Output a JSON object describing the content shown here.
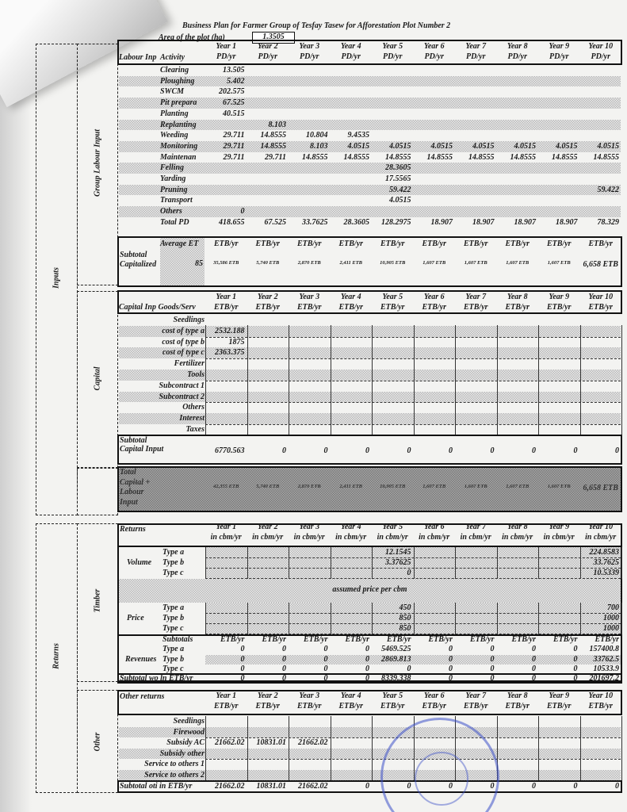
{
  "title": "Business Plan for Farmer Group of Tesfay Tasew for Afforestation Plot Number 2",
  "area": {
    "label": "Area of the plot (ha)",
    "value": "1.3505"
  },
  "years": [
    "Year 1",
    "Year 2",
    "Year 3",
    "Year 4",
    "Year 5",
    "Year 6",
    "Year 7",
    "Year 8",
    "Year 9",
    "Year 10"
  ],
  "side_labels": {
    "inputs": "Inputs",
    "group_labour": "Group Labour Input",
    "capital": "Capital",
    "returns": "Returns",
    "timber": "Timber",
    "other": "Other"
  },
  "labour": {
    "title": "Labour Inp",
    "activity": "Activity",
    "unit": "PD/yr",
    "rows": [
      {
        "label": "Clearing",
        "shaded": false,
        "values": [
          "13.505",
          "",
          "",
          "",
          "",
          "",
          "",
          "",
          "",
          ""
        ]
      },
      {
        "label": "Ploughing",
        "shaded": true,
        "values": [
          "5.402",
          "",
          "",
          "",
          "",
          "",
          "",
          "",
          "",
          ""
        ]
      },
      {
        "label": "SWCM",
        "shaded": false,
        "values": [
          "202.575",
          "",
          "",
          "",
          "",
          "",
          "",
          "",
          "",
          ""
        ]
      },
      {
        "label": "Pit prepara",
        "shaded": true,
        "values": [
          "67.525",
          "",
          "",
          "",
          "",
          "",
          "",
          "",
          "",
          ""
        ]
      },
      {
        "label": "Planting",
        "shaded": false,
        "values": [
          "40.515",
          "",
          "",
          "",
          "",
          "",
          "",
          "",
          "",
          ""
        ]
      },
      {
        "label": "Replanting",
        "shaded": true,
        "values": [
          "",
          "8.103",
          "",
          "",
          "",
          "",
          "",
          "",
          "",
          ""
        ]
      },
      {
        "label": "Weeding",
        "shaded": false,
        "values": [
          "29.711",
          "14.8555",
          "10.804",
          "9.4535",
          "",
          "",
          "",
          "",
          "",
          ""
        ]
      },
      {
        "label": "Monitoring",
        "shaded": true,
        "values": [
          "29.711",
          "14.8555",
          "8.103",
          "4.0515",
          "4.0515",
          "4.0515",
          "4.0515",
          "4.0515",
          "4.0515",
          "4.0515"
        ]
      },
      {
        "label": "Maintenan",
        "shaded": false,
        "values": [
          "29.711",
          "29.711",
          "14.8555",
          "14.8555",
          "14.8555",
          "14.8555",
          "14.8555",
          "14.8555",
          "14.8555",
          "14.8555"
        ]
      },
      {
        "label": "Felling",
        "shaded": true,
        "values": [
          "",
          "",
          "",
          "",
          "28.3605",
          "",
          "",
          "",
          "",
          ""
        ]
      },
      {
        "label": "Yarding",
        "shaded": false,
        "values": [
          "",
          "",
          "",
          "",
          "17.5565",
          "",
          "",
          "",
          "",
          ""
        ]
      },
      {
        "label": "Pruning",
        "shaded": true,
        "values": [
          "",
          "",
          "",
          "",
          "59.422",
          "",
          "",
          "",
          "",
          "59.422"
        ]
      },
      {
        "label": "Transport",
        "shaded": false,
        "values": [
          "",
          "",
          "",
          "",
          "4.0515",
          "",
          "",
          "",
          "",
          ""
        ]
      },
      {
        "label": "Others",
        "shaded": true,
        "values": [
          "0",
          "",
          "",
          "",
          "",
          "",
          "",
          "",
          "",
          ""
        ]
      },
      {
        "label": "Total PD",
        "shaded": false,
        "values": [
          "418.655",
          "67.525",
          "33.7625",
          "28.3605",
          "128.2975",
          "18.907",
          "18.907",
          "18.907",
          "18.907",
          "78.329"
        ]
      }
    ]
  },
  "labour_subtotal": {
    "avg_label": "Average ET",
    "avg_value": "85",
    "unit": "ETB/yr",
    "label": "Subtotal Capitalized",
    "values": [
      "35,586 ETB",
      "5,740 ETB",
      "2,870 ETB",
      "2,411 ETB",
      "10,905 ETB",
      "1,607 ETB",
      "1,607 ETB",
      "1,607 ETB",
      "1,607 ETB",
      "6,658 ETB"
    ]
  },
  "capital": {
    "title": "Capital Inp Goods/Serv",
    "unit": "ETB/yr",
    "rows": [
      {
        "label": "Seedlings",
        "shaded": false,
        "values": [
          "",
          "",
          "",
          "",
          "",
          "",
          "",
          "",
          "",
          ""
        ]
      },
      {
        "label": "cost of type a",
        "shaded": true,
        "values": [
          "2532.188",
          "",
          "",
          "",
          "",
          "",
          "",
          "",
          "",
          ""
        ]
      },
      {
        "label": "cost of type b",
        "shaded": false,
        "values": [
          "1875",
          "",
          "",
          "",
          "",
          "",
          "",
          "",
          "",
          ""
        ]
      },
      {
        "label": "cost of type c",
        "shaded": true,
        "values": [
          "2363.375",
          "",
          "",
          "",
          "",
          "",
          "",
          "",
          "",
          ""
        ]
      },
      {
        "label": "Fertilizer",
        "shaded": false,
        "values": [
          "",
          "",
          "",
          "",
          "",
          "",
          "",
          "",
          "",
          ""
        ]
      },
      {
        "label": "Tools",
        "shaded": true,
        "values": [
          "",
          "",
          "",
          "",
          "",
          "",
          "",
          "",
          "",
          ""
        ]
      },
      {
        "label": "Subcontract 1",
        "shaded": false,
        "values": [
          "",
          "",
          "",
          "",
          "",
          "",
          "",
          "",
          "",
          ""
        ]
      },
      {
        "label": "Subcontract 2",
        "shaded": true,
        "values": [
          "",
          "",
          "",
          "",
          "",
          "",
          "",
          "",
          "",
          ""
        ]
      },
      {
        "label": "Others",
        "shaded": false,
        "values": [
          "",
          "",
          "",
          "",
          "",
          "",
          "",
          "",
          "",
          ""
        ]
      },
      {
        "label": "Interest",
        "shaded": true,
        "values": [
          "",
          "",
          "",
          "",
          "",
          "",
          "",
          "",
          "",
          ""
        ]
      },
      {
        "label": "Taxes",
        "shaded": false,
        "values": [
          "",
          "",
          "",
          "",
          "",
          "",
          "",
          "",
          "",
          ""
        ]
      }
    ],
    "subtotal": {
      "label": "Subtotal Capital Input",
      "values": [
        "6770.563",
        "0",
        "0",
        "0",
        "0",
        "0",
        "0",
        "0",
        "0",
        "0"
      ]
    }
  },
  "total_input": {
    "label": "Total Capital + Labour Input",
    "values": [
      "42,355 ETB",
      "5,740 ETB",
      "2,870 ETB",
      "2,411 ETB",
      "10,905 ETB",
      "1,607 ETB",
      "1,607 ETB",
      "1,607 ETB",
      "1,607 ETB",
      "6,658 ETB"
    ]
  },
  "timber": {
    "title": "Returns",
    "unit": "in cbm/yr",
    "volume": {
      "label": "Volume",
      "rows": [
        {
          "label": "Type a",
          "values": [
            "",
            "",
            "",
            "",
            "12.1545",
            "",
            "",
            "",
            "",
            "224.8583"
          ]
        },
        {
          "label": "Type b",
          "values": [
            "",
            "",
            "",
            "",
            "3.37625",
            "",
            "",
            "",
            "",
            "33.7625"
          ]
        },
        {
          "label": "Type c",
          "values": [
            "",
            "",
            "",
            "",
            "0",
            "",
            "",
            "",
            "",
            "10.5339"
          ]
        }
      ]
    },
    "price_note": "assumed price per cbm",
    "price": {
      "label": "Price",
      "rows": [
        {
          "label": "Type a",
          "values": [
            "",
            "",
            "",
            "",
            "450",
            "",
            "",
            "",
            "",
            "700"
          ]
        },
        {
          "label": "Type b",
          "values": [
            "",
            "",
            "",
            "",
            "850",
            "",
            "",
            "",
            "",
            "1000"
          ]
        },
        {
          "label": "Type c",
          "values": [
            "",
            "",
            "",
            "",
            "850",
            "",
            "",
            "",
            "",
            "1000"
          ]
        }
      ]
    },
    "subtotals_label": "Subtotals",
    "subtotals_unit": "ETB/yr",
    "revenues": {
      "label": "Revenues",
      "rows": [
        {
          "label": "Type a",
          "shaded": false,
          "values": [
            "0",
            "0",
            "0",
            "0",
            "5469.525",
            "0",
            "0",
            "0",
            "0",
            "157400.8"
          ]
        },
        {
          "label": "Type b",
          "shaded": true,
          "values": [
            "0",
            "0",
            "0",
            "0",
            "2869.813",
            "0",
            "0",
            "0",
            "0",
            "33762.5"
          ]
        },
        {
          "label": "Type c",
          "shaded": false,
          "values": [
            "0",
            "0",
            "0",
            "0",
            "0",
            "0",
            "0",
            "0",
            "0",
            "10533.9"
          ]
        }
      ]
    },
    "subtotal": {
      "label": "Subtotal wo ln ETB/yr",
      "values": [
        "0",
        "0",
        "0",
        "0",
        "8339.338",
        "0",
        "0",
        "0",
        "0",
        "201697.2"
      ]
    }
  },
  "other": {
    "title": "Other returns",
    "unit": "ETB/yr",
    "rows": [
      {
        "label": "Seedlings",
        "shaded": false,
        "values": [
          "",
          "",
          "",
          "",
          "",
          "",
          "",
          "",
          "",
          ""
        ]
      },
      {
        "label": "Firewood",
        "shaded": true,
        "values": [
          "",
          "",
          "",
          "",
          "",
          "",
          "",
          "",
          "",
          ""
        ]
      },
      {
        "label": "Subsidy AC",
        "shaded": false,
        "values": [
          "21662.02",
          "10831.01",
          "21662.02",
          "",
          "",
          "",
          "",
          "",
          "",
          ""
        ]
      },
      {
        "label": "Subsidy other",
        "shaded": true,
        "values": [
          "",
          "",
          "",
          "",
          "",
          "",
          "",
          "",
          "",
          ""
        ]
      },
      {
        "label": "Service to others 1",
        "shaded": false,
        "values": [
          "",
          "",
          "",
          "",
          "",
          "",
          "",
          "",
          "",
          ""
        ]
      },
      {
        "label": "Service to others 2",
        "shaded": true,
        "values": [
          "",
          "",
          "",
          "",
          "",
          "",
          "",
          "",
          "",
          ""
        ]
      }
    ],
    "subtotal": {
      "label": "Subtotal oti in ETB/yr",
      "values": [
        "21662.02",
        "10831.01",
        "21662.02",
        "0",
        "0",
        "0",
        "0",
        "0",
        "0",
        "0"
      ]
    }
  }
}
